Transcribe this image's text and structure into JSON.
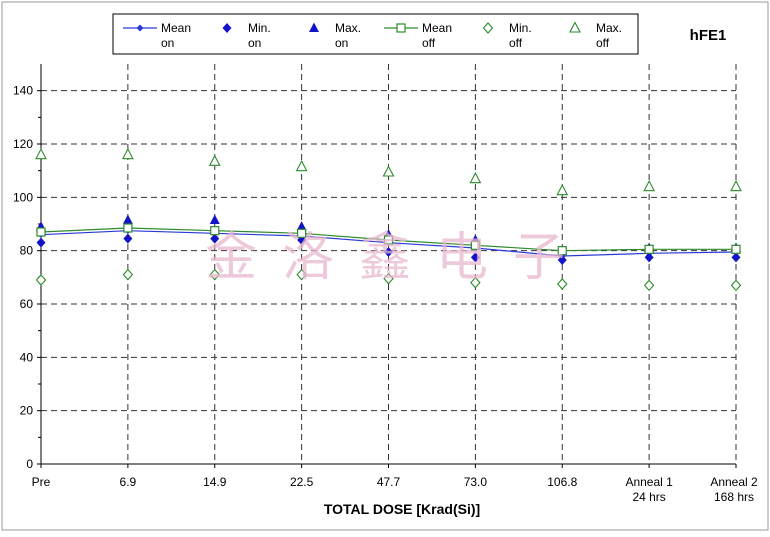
{
  "chart_data": {
    "type": "line",
    "title": "hFE1",
    "xlabel": "TOTAL DOSE [Krad(Si)]",
    "ylabel": "",
    "ylim": [
      0,
      150
    ],
    "yticks": [
      0,
      20,
      40,
      60,
      80,
      100,
      120,
      140
    ],
    "grid": true,
    "legend_position": "top",
    "categories": [
      [
        "Pre"
      ],
      [
        "6.9"
      ],
      [
        "14.9"
      ],
      [
        "22.5"
      ],
      [
        "47.7"
      ],
      [
        "73.0"
      ],
      [
        "106.8"
      ],
      [
        "Anneal 1",
        "24 hrs"
      ],
      [
        "Anneal 2",
        "168 hrs"
      ]
    ],
    "series": [
      {
        "name": [
          "Mean",
          "on"
        ],
        "marker": "small-diamond-filled",
        "line": true,
        "color": "#2a3ad6",
        "values": [
          86,
          87.5,
          86.5,
          85.5,
          83,
          81,
          78,
          79,
          79.5
        ]
      },
      {
        "name": [
          "Min.",
          "on"
        ],
        "marker": "diamond-filled",
        "line": false,
        "color": "#1313c8",
        "values": [
          83,
          84.5,
          84.5,
          84,
          79.5,
          77.5,
          76.5,
          77.5,
          77.5
        ]
      },
      {
        "name": [
          "Max.",
          "on"
        ],
        "marker": "triangle-filled",
        "line": false,
        "color": "#1313c8",
        "values": [
          89,
          91.5,
          91.5,
          89,
          86,
          84,
          80,
          81,
          81
        ]
      },
      {
        "name": [
          "Mean",
          "off"
        ],
        "marker": "square-open",
        "line": true,
        "color": "#2d8a2d",
        "values": [
          87,
          88.5,
          87.5,
          86.5,
          84,
          82,
          80,
          80.5,
          80.5
        ]
      },
      {
        "name": [
          "Min.",
          "off"
        ],
        "marker": "diamond-open",
        "line": false,
        "color": "#2d8a2d",
        "values": [
          69,
          71,
          71,
          71,
          69.5,
          68,
          67.5,
          67,
          67
        ]
      },
      {
        "name": [
          "Max.",
          "off"
        ],
        "marker": "triangle-open",
        "line": false,
        "color": "#2d8a2d",
        "values": [
          116,
          116,
          113.5,
          111.5,
          109.5,
          107,
          102.5,
          104,
          104
        ]
      }
    ]
  },
  "watermark": "金洛鑫电子"
}
